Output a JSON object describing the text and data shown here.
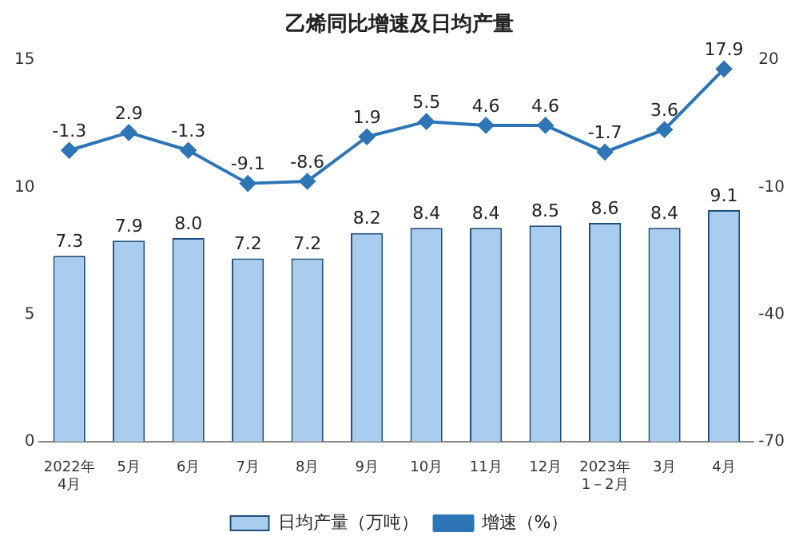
{
  "chart_data": {
    "type": "bar",
    "title": "乙烯同比增速及日均产量",
    "categories": [
      "2022年\n4月",
      "5月",
      "6月",
      "7月",
      "8月",
      "9月",
      "10月",
      "11月",
      "12月",
      "2023年\n1－2月",
      "3月",
      "4月"
    ],
    "series": [
      {
        "name": "日均产量（万吨）",
        "color": "#a9cdee",
        "values": [
          7.3,
          7.9,
          8.0,
          7.2,
          7.2,
          8.2,
          8.4,
          8.4,
          8.5,
          8.6,
          8.4,
          9.1
        ],
        "value_labels": [
          "7.3",
          "7.9",
          "8.0",
          "7.2",
          "7.2",
          "8.2",
          "8.4",
          "8.4",
          "8.5",
          "8.6",
          "8.4",
          "9.1"
        ]
      },
      {
        "name": "增速（%）",
        "type": "line",
        "axis": "y2",
        "color": "#2e75b6",
        "values": [
          -1.3,
          2.9,
          -1.3,
          -9.1,
          -8.6,
          1.9,
          5.5,
          4.6,
          4.6,
          -1.7,
          3.6,
          17.9
        ]
      }
    ],
    "ylim": [
      0,
      15
    ],
    "yticks": [
      0,
      5,
      10,
      15
    ],
    "y2lim": [
      -70,
      20
    ],
    "y2ticks": [
      -70,
      -40,
      -10,
      20
    ],
    "data_labels": true,
    "legend": "bottom",
    "marker": "diamond",
    "grid": false
  }
}
